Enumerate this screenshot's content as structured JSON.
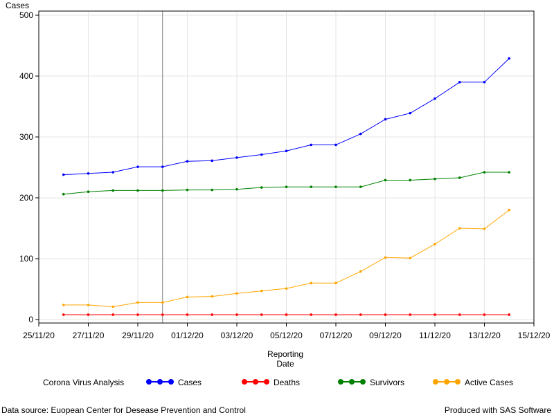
{
  "chart_data": {
    "type": "line",
    "ylabel": "Cases",
    "xlabel_lines": [
      "Reporting",
      "Date"
    ],
    "ylim": [
      0,
      500
    ],
    "yticks": [
      0,
      100,
      200,
      300,
      400,
      500
    ],
    "xlim": [
      "2020-11-25",
      "2020-12-15"
    ],
    "xticks": [
      "25/11/20",
      "27/11/20",
      "29/11/20",
      "01/12/20",
      "03/12/20",
      "05/12/20",
      "07/12/20",
      "09/12/20",
      "11/12/20",
      "13/12/20",
      "15/12/20"
    ],
    "reference_line_x": "2020-11-30",
    "grid": true,
    "legend_title": "Corona Virus Analysis",
    "legend_position": "bottom",
    "dates": [
      "2020-11-26",
      "2020-11-27",
      "2020-11-28",
      "2020-11-29",
      "2020-11-30",
      "2020-12-01",
      "2020-12-02",
      "2020-12-03",
      "2020-12-04",
      "2020-12-05",
      "2020-12-06",
      "2020-12-07",
      "2020-12-08",
      "2020-12-09",
      "2020-12-10",
      "2020-12-11",
      "2020-12-12",
      "2020-12-13",
      "2020-12-14"
    ],
    "series": [
      {
        "name": "Cases",
        "color": "#0000ff",
        "values": [
          238,
          240,
          242,
          251,
          251,
          260,
          261,
          266,
          271,
          277,
          287,
          287,
          305,
          329,
          339,
          363,
          390,
          390,
          429
        ]
      },
      {
        "name": "Deaths",
        "color": "#ff0000",
        "values": [
          8,
          8,
          8,
          8,
          8,
          8,
          8,
          8,
          8,
          8,
          8,
          8,
          8,
          8,
          8,
          8,
          8,
          8,
          8
        ]
      },
      {
        "name": "Survivors",
        "color": "#008000",
        "values": [
          206,
          210,
          212,
          212,
          212,
          213,
          213,
          214,
          217,
          218,
          218,
          218,
          218,
          229,
          229,
          231,
          233,
          242,
          242
        ]
      },
      {
        "name": "Active Cases",
        "color": "#ffa500",
        "values": [
          24,
          24,
          21,
          28,
          28,
          37,
          38,
          43,
          47,
          51,
          60,
          60,
          79,
          102,
          101,
          124,
          150,
          149,
          180
        ]
      }
    ]
  },
  "footer": {
    "source": "Data source: Euopean Center for Desease Prevention and Control",
    "credit": "Produced with SAS Software"
  }
}
